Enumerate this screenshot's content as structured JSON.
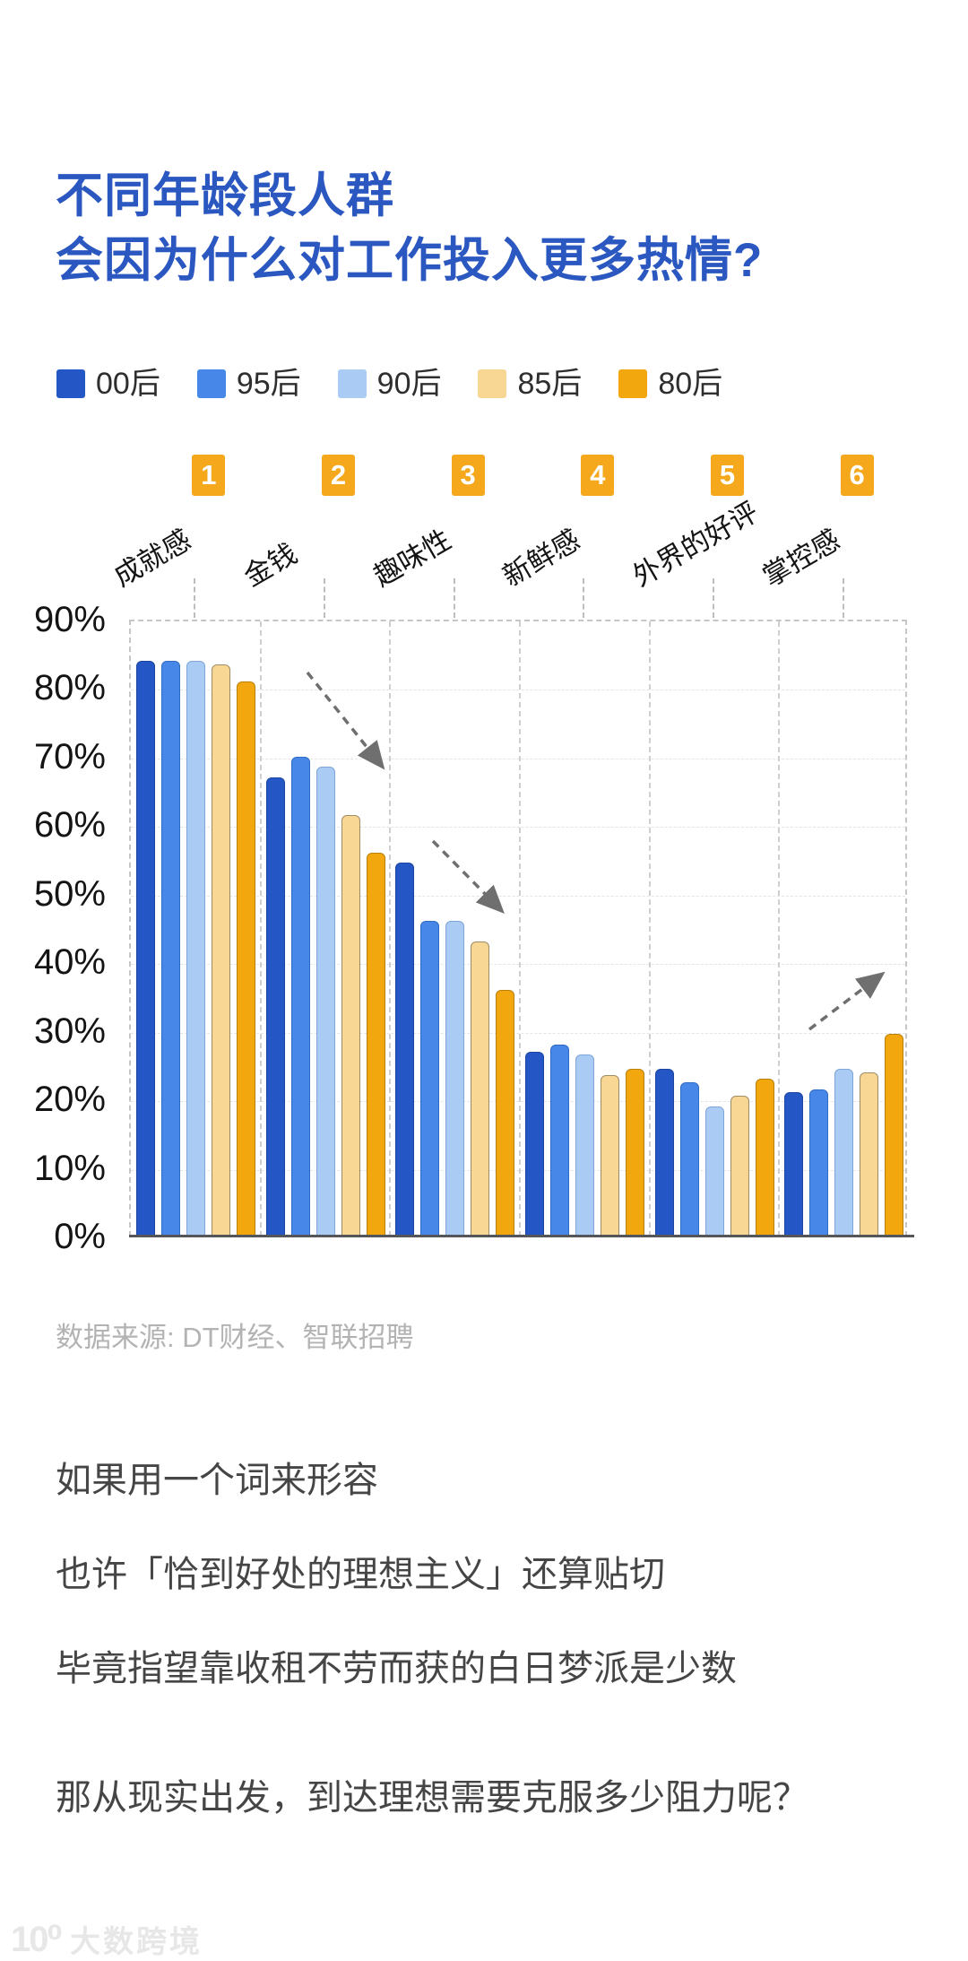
{
  "title": {
    "line1": "不同年龄段人群",
    "line2": "会因为什么对工作投入更多热情?"
  },
  "legend": [
    {
      "label": "00后",
      "color": "#2456c6"
    },
    {
      "label": "95后",
      "color": "#4687e8"
    },
    {
      "label": "90后",
      "color": "#a9cbf4"
    },
    {
      "label": "85后",
      "color": "#f8d794"
    },
    {
      "label": "80后",
      "color": "#f2a70e"
    }
  ],
  "chart_data": {
    "type": "bar",
    "title": "不同年龄段人群会因为什么对工作投入更多热情?",
    "categories": [
      "成就感",
      "金钱",
      "趣味性",
      "新鲜感",
      "外界的好评",
      "掌控感"
    ],
    "category_badges": [
      "1",
      "2",
      "3",
      "4",
      "5",
      "6"
    ],
    "badge_color": "#f5a81c",
    "series": [
      {
        "name": "00后",
        "color": "#2456c6",
        "border": "#1c459f",
        "values": [
          84,
          67,
          54.5,
          27,
          24.5,
          21
        ]
      },
      {
        "name": "95后",
        "color": "#4687e8",
        "border": "#2f6bc4",
        "values": [
          84,
          70,
          46,
          28,
          22.5,
          21.5
        ]
      },
      {
        "name": "90后",
        "color": "#a9cbf4",
        "border": "#7fa6d8",
        "values": [
          84,
          68.5,
          46,
          26.5,
          19,
          24.5
        ]
      },
      {
        "name": "85后",
        "color": "#f8d794",
        "border": "#9e8c64",
        "values": [
          83.5,
          61.5,
          43,
          23.5,
          20.5,
          24
        ]
      },
      {
        "name": "80后",
        "color": "#f2a70e",
        "border": "#b97f08",
        "values": [
          81,
          56,
          36,
          24.5,
          23,
          29.5
        ]
      }
    ],
    "ylabel": "",
    "xlabel": "",
    "ylim": [
      0,
      90
    ],
    "y_ticks": [
      "90%",
      "80%",
      "70%",
      "60%",
      "50%",
      "40%",
      "30%",
      "20%",
      "10%",
      "0%"
    ],
    "grid": "horizontal-dashed, vertical group separators dashed",
    "legend_position": "top-left",
    "annotations": [
      {
        "type": "dashed-arrow",
        "direction": "down-right",
        "over_category": "金钱"
      },
      {
        "type": "dashed-arrow",
        "direction": "down-right",
        "over_category": "趣味性"
      },
      {
        "type": "dashed-arrow",
        "direction": "up-right",
        "over_category": "掌控感"
      }
    ],
    "arrow_color": "#6f6f6f"
  },
  "source": "数据来源: DT财经、智联招聘",
  "paragraphs": [
    "如果用一个词来形容",
    "也许「恰到好处的理想主义」还算贴切",
    "毕竟指望靠收租不劳而获的白日梦派是少数",
    "那从现实出发，到达理想需要克服多少阻力呢？"
  ],
  "watermark": {
    "logo": "10⁰",
    "text": "大数跨境"
  }
}
